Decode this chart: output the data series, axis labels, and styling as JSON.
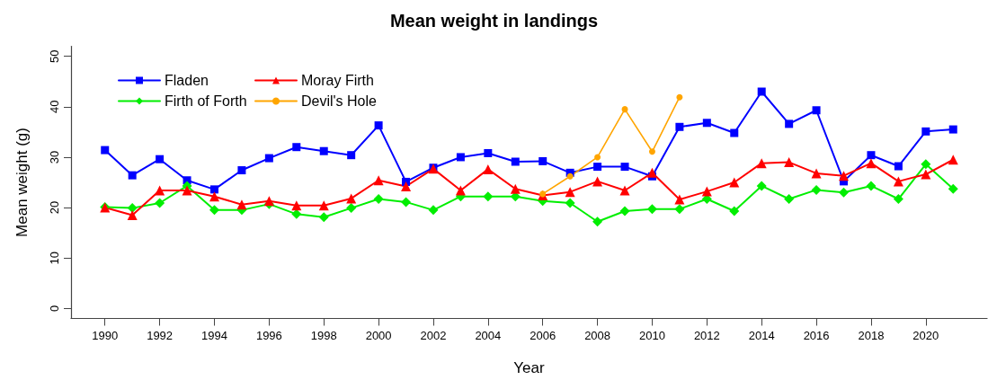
{
  "chart_data": {
    "type": "line",
    "title": "Mean weight in landings",
    "xlabel": "Year",
    "ylabel": "Mean weight (g)",
    "x": [
      1990,
      1991,
      1992,
      1993,
      1994,
      1995,
      1996,
      1997,
      1998,
      1999,
      2000,
      2001,
      2002,
      2003,
      2004,
      2005,
      2006,
      2007,
      2008,
      2009,
      2010,
      2011,
      2012,
      2013,
      2014,
      2015,
      2016,
      2017,
      2018,
      2019,
      2020,
      2021
    ],
    "series": [
      {
        "name": "Fladen",
        "color": "#0000ff",
        "marker": "square",
        "values": [
          31.4,
          26.4,
          29.6,
          25.4,
          23.6,
          27.4,
          29.8,
          32.0,
          31.2,
          30.4,
          36.3,
          25.1,
          27.9,
          30.0,
          30.8,
          29.1,
          29.2,
          26.9,
          28.1,
          28.1,
          26.2,
          36.0,
          36.8,
          34.8,
          43.0,
          36.6,
          39.3,
          25.2,
          30.4,
          28.2,
          35.1,
          35.5
        ]
      },
      {
        "name": "Firth of Forth",
        "color": "#00ee00",
        "marker": "diamond",
        "values": [
          20.1,
          19.9,
          20.9,
          24.3,
          19.5,
          19.5,
          20.7,
          18.7,
          18.1,
          19.9,
          21.7,
          21.1,
          19.5,
          22.2,
          22.2,
          22.2,
          21.3,
          20.9,
          17.2,
          19.3,
          19.7,
          19.7,
          21.7,
          19.3,
          24.3,
          21.7,
          23.5,
          23.0,
          24.3,
          21.7,
          28.6,
          23.7
        ]
      },
      {
        "name": "Moray Firth",
        "color": "#ff0000",
        "marker": "triangle",
        "values": [
          20.0,
          18.5,
          23.4,
          23.4,
          22.2,
          20.6,
          21.3,
          20.4,
          20.4,
          21.8,
          25.4,
          24.2,
          27.7,
          23.4,
          27.6,
          23.7,
          22.4,
          23.1,
          25.2,
          23.4,
          26.9,
          21.6,
          23.2,
          25.0,
          28.8,
          29.0,
          26.8,
          26.3,
          28.8,
          25.2,
          26.6,
          29.5
        ]
      },
      {
        "name": "Devil's Hole",
        "color": "#ffa500",
        "marker": "circle",
        "x": [
          2006,
          2007,
          2008,
          2009,
          2010,
          2011
        ],
        "values": [
          22.7,
          26.2,
          30.0,
          39.5,
          31.1,
          41.9
        ]
      }
    ],
    "xlim": [
      1988.76,
      2022.24
    ],
    "xticks": [
      1990,
      1992,
      1994,
      1996,
      1998,
      2000,
      2002,
      2004,
      2006,
      2008,
      2010,
      2012,
      2014,
      2016,
      2018,
      2020
    ],
    "ylim": [
      -2,
      52
    ],
    "yticks": [
      0,
      10,
      20,
      30,
      40,
      50
    ],
    "legend": "top left"
  }
}
